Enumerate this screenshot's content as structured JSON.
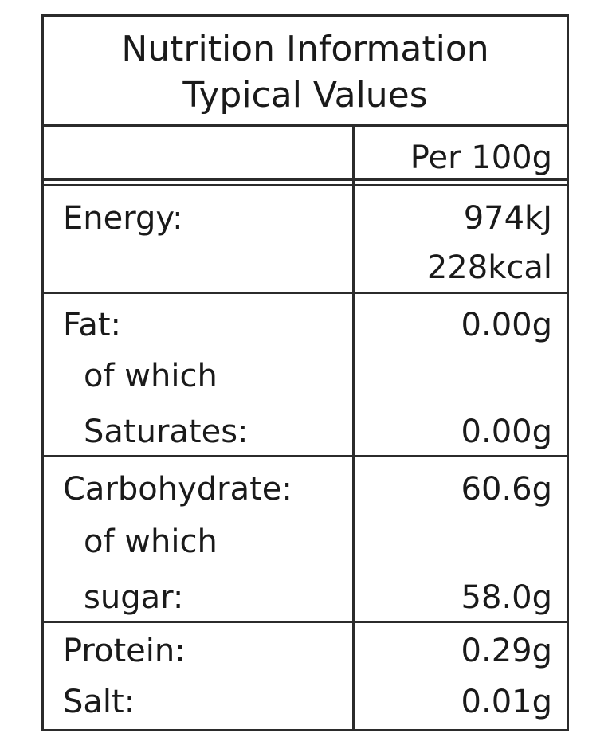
{
  "title": {
    "line1": "Nutrition Information",
    "line2": "Typical Values"
  },
  "header": {
    "per": "Per 100g"
  },
  "rows": {
    "energy": {
      "label": "Energy:",
      "kj": "974kJ",
      "kcal": "228kcal"
    },
    "fat": {
      "label": "Fat:",
      "value": "0.00g",
      "of_which": "of which",
      "sub_label": "Saturates:",
      "sub_value": "0.00g"
    },
    "carbohydrate": {
      "label": "Carbohydrate:",
      "value": "60.6g",
      "of_which": "of which",
      "sub_label": "sugar:",
      "sub_value": "58.0g"
    },
    "protein": {
      "label": "Protein:",
      "value": "0.29g"
    },
    "salt": {
      "label": "Salt:",
      "value": "0.01g"
    }
  }
}
